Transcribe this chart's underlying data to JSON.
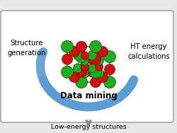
{
  "bg_color": "#e8e8e8",
  "box_color": "#ffffff",
  "box_edge_color": "#999999",
  "arrow_color": "#5b9bd5",
  "arrow_alpha": 0.9,
  "text_structure_gen": "Structure\ngeneration",
  "text_ht_energy": "HT energy\ncalculations",
  "text_data_mining": "Data mining",
  "text_low_energy": "Low-energy structures",
  "green_color": "#22aa22",
  "red_color": "#cc1111",
  "line_color": "#22aa22",
  "font_size_main": 7.2,
  "font_size_bottom": 6.8,
  "font_size_data": 8.5
}
